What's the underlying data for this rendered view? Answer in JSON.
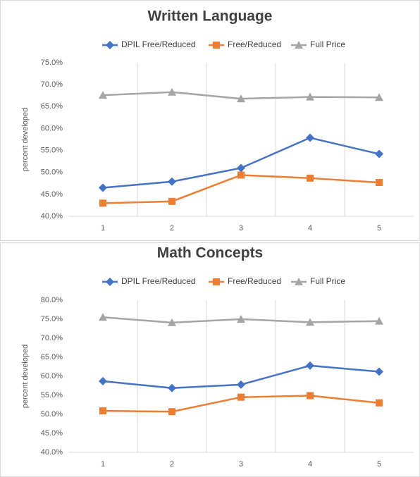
{
  "chart_data": [
    {
      "type": "line",
      "title": "Written Language",
      "y_label": "percent developed",
      "categories": [
        "1",
        "2",
        "3",
        "4",
        "5"
      ],
      "series": [
        {
          "name": "DPIL Free/Reduced",
          "color": "#4472c4",
          "marker": "diamond",
          "values": [
            46.5,
            47.9,
            51.0,
            57.9,
            54.2
          ]
        },
        {
          "name": "Free/Reduced",
          "color": "#ed7d31",
          "marker": "square",
          "values": [
            43.0,
            43.4,
            49.4,
            48.7,
            47.7
          ]
        },
        {
          "name": "Full Price",
          "color": "#a5a5a5",
          "marker": "triangle",
          "values": [
            67.6,
            68.3,
            66.8,
            67.2,
            67.1
          ]
        }
      ],
      "ylim": [
        40,
        75
      ],
      "yticks": [
        {
          "value": 40,
          "label": "40.0%"
        },
        {
          "value": 45,
          "label": "45.0%"
        },
        {
          "value": 50,
          "label": "50.0%"
        },
        {
          "value": 55,
          "label": "55.0%"
        },
        {
          "value": 60,
          "label": "60.0%"
        },
        {
          "value": 65,
          "label": "65.0%"
        },
        {
          "value": 70,
          "label": "70.0%"
        },
        {
          "value": 75,
          "label": "75.0%"
        }
      ],
      "grid": "vertical",
      "legend": "top"
    },
    {
      "type": "line",
      "title": "Math Concepts",
      "y_label": "percent developed",
      "categories": [
        "1",
        "2",
        "3",
        "4",
        "5"
      ],
      "series": [
        {
          "name": "DPIL Free/Reduced",
          "color": "#4472c4",
          "marker": "diamond",
          "values": [
            58.7,
            56.9,
            57.8,
            62.8,
            61.2
          ]
        },
        {
          "name": "Free/Reduced",
          "color": "#ed7d31",
          "marker": "square",
          "values": [
            50.9,
            50.7,
            54.5,
            54.9,
            53.0
          ]
        },
        {
          "name": "Full Price",
          "color": "#a5a5a5",
          "marker": "triangle",
          "values": [
            75.5,
            74.1,
            75.0,
            74.2,
            74.5
          ]
        }
      ],
      "ylim": [
        40,
        80
      ],
      "yticks": [
        {
          "value": 40,
          "label": "40.0%"
        },
        {
          "value": 45,
          "label": "45.0%"
        },
        {
          "value": 50,
          "label": "50.0%"
        },
        {
          "value": 55,
          "label": "55.0%"
        },
        {
          "value": 60,
          "label": "60.0%"
        },
        {
          "value": 65,
          "label": "65.0%"
        },
        {
          "value": 70,
          "label": "70.0%"
        },
        {
          "value": 75,
          "label": "75.0%"
        },
        {
          "value": 80,
          "label": "80.0%"
        }
      ],
      "grid": "vertical",
      "legend": "top"
    }
  ]
}
